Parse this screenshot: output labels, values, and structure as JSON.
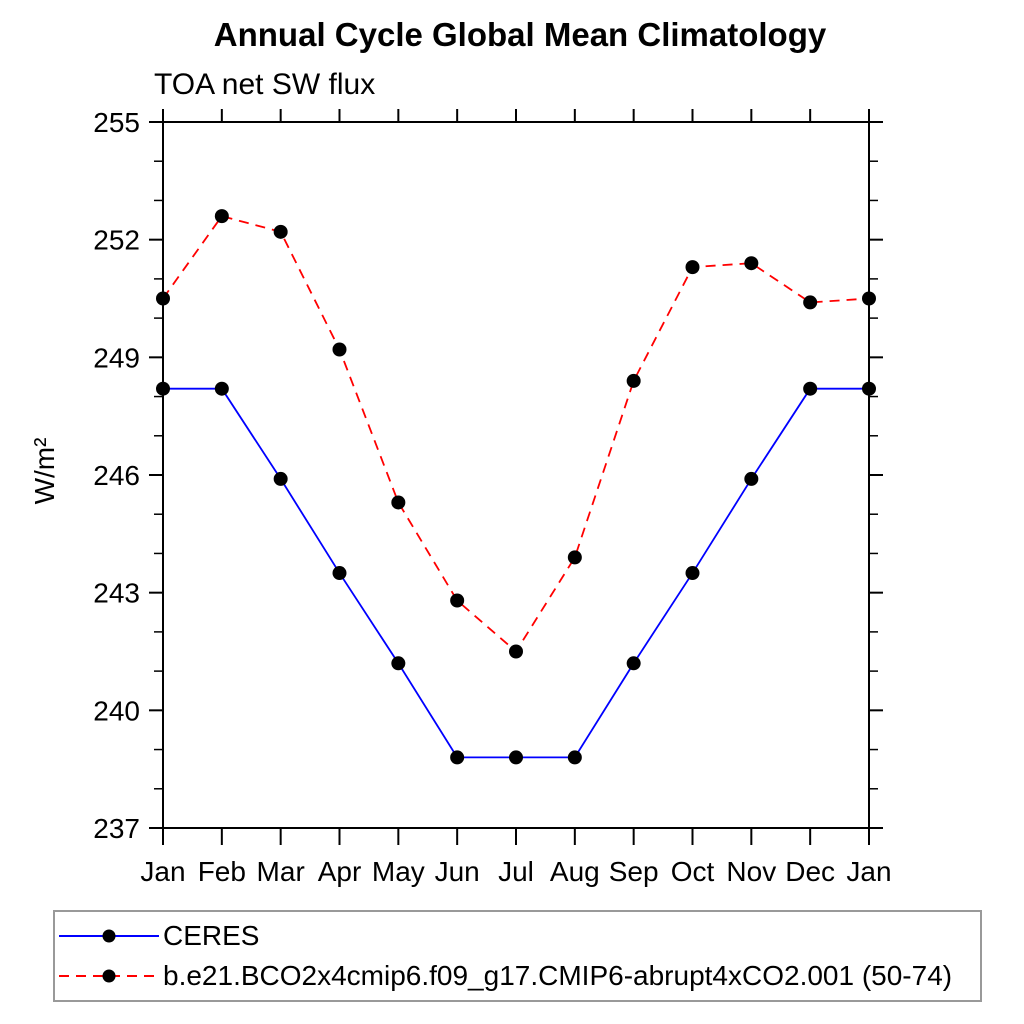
{
  "title": "Annual Cycle Global Mean Climatology",
  "subtitle": "TOA net SW flux",
  "chart_data": {
    "type": "line",
    "x_categories": [
      "Jan",
      "Feb",
      "Mar",
      "Apr",
      "May",
      "Jun",
      "Jul",
      "Aug",
      "Sep",
      "Oct",
      "Nov",
      "Dec",
      "Jan"
    ],
    "ylabel": "W/m²",
    "ylim": [
      237,
      255
    ],
    "y_major_ticks": [
      237,
      240,
      243,
      246,
      249,
      252,
      255
    ],
    "y_minor_step": 1,
    "grid": false,
    "legend_position": "bottom",
    "frame_color": "#000000",
    "marker_color": "#000000",
    "series": [
      {
        "name": "CERES",
        "color": "#0000ff",
        "style": "solid",
        "marker": "circle",
        "values": [
          248.2,
          248.2,
          245.9,
          243.5,
          241.2,
          238.8,
          238.8,
          238.8,
          241.2,
          243.5,
          245.9,
          248.2,
          248.2
        ]
      },
      {
        "name": "b.e21.BCO2x4cmip6.f09_g17.CMIP6-abrupt4xCO2.001 (50-74)",
        "color": "#ff0000",
        "style": "dashed",
        "marker": "circle",
        "values": [
          250.5,
          252.6,
          252.2,
          249.2,
          245.3,
          242.8,
          241.5,
          243.9,
          248.4,
          251.3,
          251.4,
          250.4,
          250.5
        ]
      }
    ]
  }
}
